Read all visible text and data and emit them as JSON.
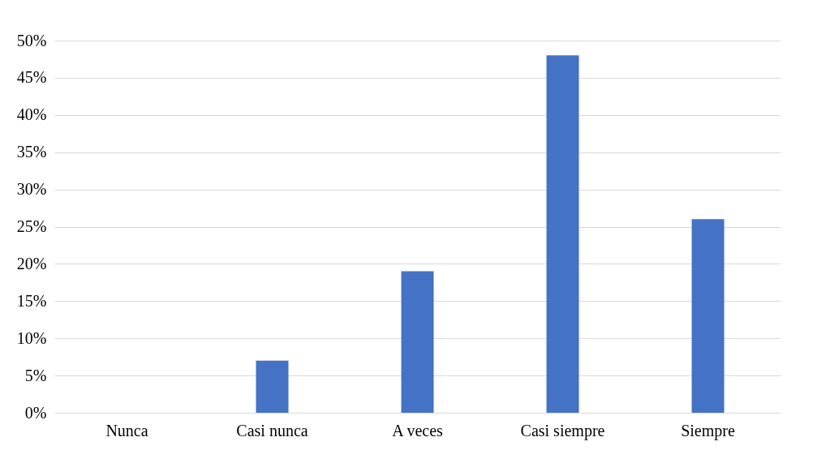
{
  "chart_data": {
    "type": "bar",
    "categories": [
      "Nunca",
      "Casi nunca",
      "A veces",
      "Casi siempre",
      "Siempre"
    ],
    "values": [
      0,
      7,
      19,
      48,
      26
    ],
    "color": "#4472c4",
    "ylim": [
      0,
      50
    ],
    "yticks": [
      {
        "value": 0,
        "label": "0%"
      },
      {
        "value": 5,
        "label": "5%"
      },
      {
        "value": 10,
        "label": "10%"
      },
      {
        "value": 15,
        "label": "15%"
      },
      {
        "value": 20,
        "label": "20%"
      },
      {
        "value": 25,
        "label": "25%"
      },
      {
        "value": 30,
        "label": "30%"
      },
      {
        "value": 35,
        "label": "35%"
      },
      {
        "value": 40,
        "label": "40%"
      },
      {
        "value": 45,
        "label": "45%"
      },
      {
        "value": 50,
        "label": "50%"
      }
    ],
    "grid": "y"
  }
}
